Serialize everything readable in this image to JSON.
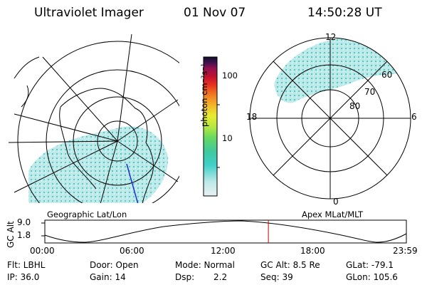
{
  "header": {
    "instrument": "Ultraviolet Imager",
    "date": "01 Nov 07",
    "time": "14:50:28 UT"
  },
  "left_map": {
    "label": "Geographic Lat/Lon"
  },
  "right_map": {
    "label": "Apex MLat/MLT",
    "mlt_labels": {
      "top": "12",
      "left": "18",
      "right": "6",
      "bottom": "0"
    },
    "mlat_labels": [
      "60",
      "70",
      "80"
    ]
  },
  "colorbar": {
    "unit_label": "photon cm⁻²s⁻¹",
    "tick_labels": [
      "100",
      "10"
    ],
    "colors": [
      "#e0eeee",
      "#bfe8e8",
      "#40d0c8",
      "#3fc8a0",
      "#68d860",
      "#b8e840",
      "#e8ec30",
      "#f4b028",
      "#f07020",
      "#e83020",
      "#c01030",
      "#901050",
      "#401050",
      "#101028"
    ]
  },
  "timeline": {
    "ylabel": "GC Alt",
    "y_ticks": [
      "9.0",
      "1.8"
    ],
    "x_ticks": [
      "00:00",
      "06:00",
      "12:00",
      "18:00",
      "23:59"
    ],
    "current_marker_hours": 14.84,
    "marker_color": "#cc0000"
  },
  "status": {
    "flt": "Flt: LBHL",
    "door": "Door: Open",
    "mode": "Mode: Normal",
    "gc_alt": "GC Alt: 8.5 Re",
    "glat": "GLat: -79.1",
    "ip": "IP: 36.0",
    "gain": "Gain: 14",
    "dsp_label": "Dsp:",
    "dsp_value": "2.2",
    "seq": "Seq: 39",
    "glon": "GLon: 105.6"
  }
}
